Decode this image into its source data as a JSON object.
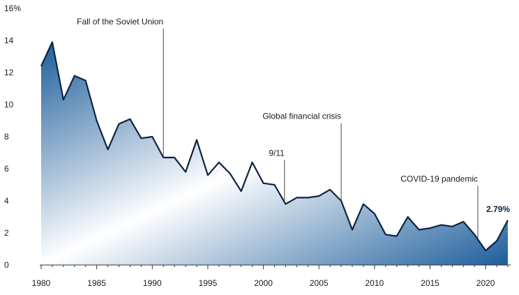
{
  "chart_data": {
    "type": "area",
    "title": "",
    "xlabel": "",
    "ylabel": "",
    "x": [
      1980,
      1981,
      1982,
      1983,
      1984,
      1985,
      1986,
      1987,
      1988,
      1989,
      1990,
      1991,
      1992,
      1993,
      1994,
      1995,
      1996,
      1997,
      1998,
      1999,
      2000,
      2001,
      2002,
      2003,
      2004,
      2005,
      2006,
      2007,
      2008,
      2009,
      2010,
      2011,
      2012,
      2013,
      2014,
      2015,
      2016,
      2017,
      2018,
      2019,
      2020,
      2021,
      2022
    ],
    "values": [
      12.4,
      13.9,
      10.3,
      11.8,
      11.5,
      9.0,
      7.2,
      8.8,
      9.1,
      7.9,
      8.0,
      6.7,
      6.7,
      5.8,
      7.8,
      5.6,
      6.4,
      5.7,
      4.6,
      6.4,
      5.1,
      5.0,
      3.8,
      4.2,
      4.2,
      4.3,
      4.7,
      4.0,
      2.2,
      3.8,
      3.2,
      1.9,
      1.8,
      3.0,
      2.2,
      2.3,
      2.5,
      2.4,
      2.7,
      1.9,
      0.9,
      1.5,
      2.79
    ],
    "xlim": [
      1980,
      2022
    ],
    "ylim": [
      0,
      16
    ],
    "x_ticks": [
      "1980",
      "1985",
      "1990",
      "1995",
      "2000",
      "2005",
      "2010",
      "2015",
      "2020"
    ],
    "y_ticks": [
      "0",
      "2",
      "4",
      "6",
      "8",
      "10",
      "12",
      "14",
      "16%"
    ],
    "grid": false,
    "colors": {
      "line": "#0d2340",
      "fill_dark": "#1e5e9c",
      "fill_light": "#ffffff"
    },
    "annotations": [
      {
        "label": "Fall of the Soviet Union",
        "x": 1991,
        "label_y": 15.0
      },
      {
        "label": "9/11",
        "x": 2001.9,
        "label_y": 6.8
      },
      {
        "label": "Global financial crisis",
        "x": 2007,
        "label_y": 9.1
      },
      {
        "label": "COVID-19 pandemic",
        "x": 2019.3,
        "label_y": 5.2
      }
    ],
    "end_label": "2.79%"
  }
}
